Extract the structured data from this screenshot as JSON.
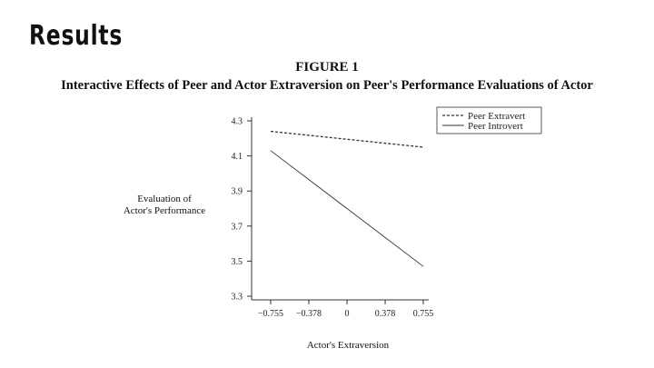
{
  "slide": {
    "title": "Results"
  },
  "figure": {
    "label": "FIGURE 1",
    "caption": "Interactive Effects of Peer and Actor Extraversion on Peer's Performance Evaluations of Actor"
  },
  "chart_data": {
    "type": "line",
    "x": [
      -0.755,
      0.755
    ],
    "series": [
      {
        "name": "Peer Extravert",
        "values": [
          4.24,
          4.15
        ],
        "style": "dashed"
      },
      {
        "name": "Peer Introvert",
        "values": [
          4.13,
          3.47
        ],
        "style": "solid"
      }
    ],
    "xlabel": "Actor's Extraversion",
    "ylabel_lines": [
      "Evaluation of",
      "Actor's Performance"
    ],
    "xticks": [
      -0.755,
      -0.378,
      0,
      0.378,
      0.755
    ],
    "xtick_labels": [
      "−0.755",
      "−0.378",
      "0",
      "0.378",
      "0.755"
    ],
    "yticks": [
      4.3,
      4.1,
      3.9,
      3.7,
      3.5,
      3.3
    ],
    "ytick_labels": [
      "4.3",
      "4.1",
      "3.9",
      "3.7",
      "3.5",
      "3.3"
    ],
    "xlim": [
      -0.755,
      0.755
    ],
    "ylim": [
      3.3,
      4.3
    ],
    "legend_position": "top-right",
    "grid": false,
    "colors": {
      "line": "#333333",
      "axis": "#333333"
    }
  }
}
